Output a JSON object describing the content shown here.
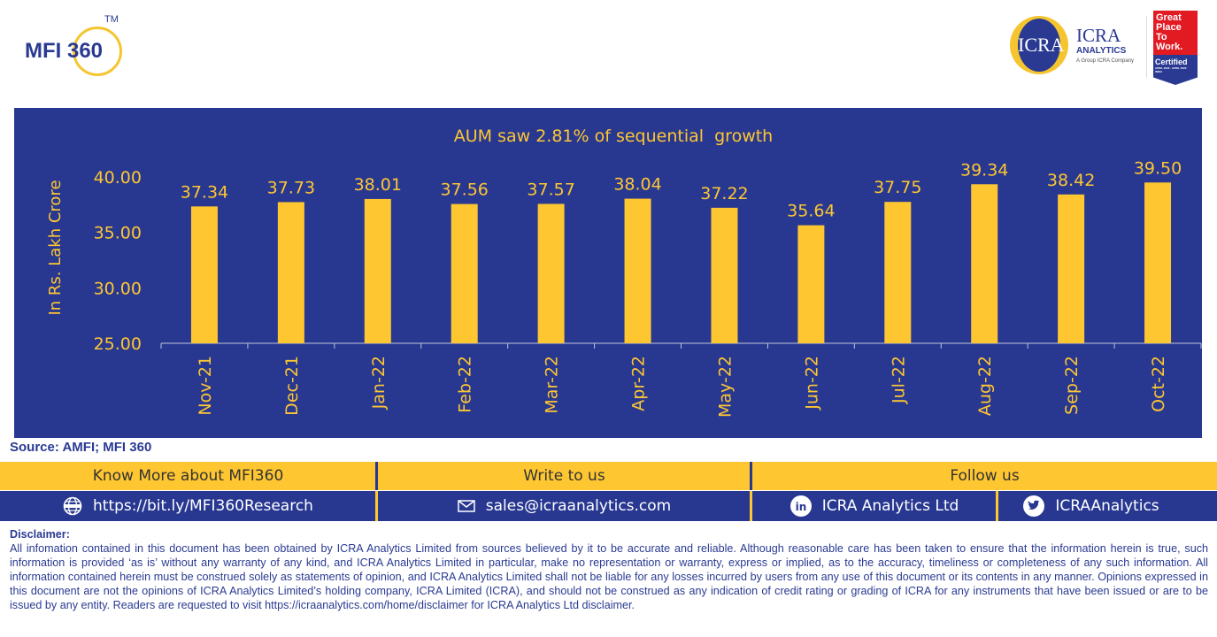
{
  "header": {
    "mfi_logo_text": "MFI 360",
    "mfi_logo_tm": "TM",
    "icra_logo": {
      "mark": "ICRA",
      "name": "ICRA",
      "sub": "ANALYTICS",
      "tagline": "A Group ICRA Company"
    },
    "gptw_badge": {
      "lines": [
        "Great",
        "Place",
        "To",
        "Work."
      ],
      "certified": "Certified",
      "dates": "APRIL 2022 - APRIL 2023",
      "country": "INDIA"
    }
  },
  "colors": {
    "panel": "#283891",
    "bar": "#fec631",
    "text_accent": "#fec631"
  },
  "chart_data": {
    "type": "bar",
    "title": "AUM saw 2.81% of sequential  growth",
    "ylabel": "In Rs. Lakh Crore",
    "xlabel": "",
    "categories": [
      "Nov-21",
      "Dec-21",
      "Jan-22",
      "Feb-22",
      "Mar-22",
      "Apr-22",
      "May-22",
      "Jun-22",
      "Jul-22",
      "Aug-22",
      "Sep-22",
      "Oct-22"
    ],
    "values": [
      37.34,
      37.73,
      38.01,
      37.56,
      37.57,
      38.04,
      37.22,
      35.64,
      37.75,
      39.34,
      38.42,
      39.5
    ],
    "data_labels": [
      "37.34",
      "37.73",
      "38.01",
      "37.56",
      "37.57",
      "38.04",
      "37.22",
      "35.64",
      "37.75",
      "39.34",
      "38.42",
      "39.50"
    ],
    "ylim": [
      25,
      40
    ],
    "yticks": [
      "25.00",
      "30.00",
      "35.00",
      "40.00"
    ],
    "grid": false,
    "legend": "none"
  },
  "source": "Source: AMFI; MFI 360",
  "footer": {
    "know_more": "Know More about MFI360",
    "write_to_us": "Write to us",
    "follow_us": "Follow us",
    "website": "https://bit.ly/MFI360Research",
    "email": "sales@icraanalytics.com",
    "linkedin": "ICRA Analytics Ltd",
    "twitter": "ICRAAnalytics",
    "icons": {
      "website": "globe-icon",
      "email": "envelope-icon",
      "linkedin": "linkedin-icon",
      "twitter": "twitter-icon"
    }
  },
  "disclaimer": {
    "heading": "Disclaimer:",
    "body": "All infomation contained in this document has been obtained by ICRA Analytics Limited from sources believed by it to be accurate and reliable. Although reasonable care has been taken to ensure that the information herein is true, such information is provided ‘as is’ without any warranty of any kind, and ICRA Analytics Limited in particular, make no representation or warranty, express or implied, as to the accuracy, timeliness or completeness of any such information. All information contained herein must be construed solely as statements of opinion, and ICRA Analytics Limited shall not be liable for any losses incurred by users from any use of this document or its contents in any manner. Opinions expressed in this document are not the opinions of ICRA Analytics Limited’s holding company, ICRA Limited (ICRA), and should not be construed as any indication of credit rating or grading of ICRA for any instruments that have been issued or are to be issued by any entity. Readers are requested to visit https://icraanalytics.com/home/disclaimer for ICRA Analytics Ltd disclaimer."
  }
}
